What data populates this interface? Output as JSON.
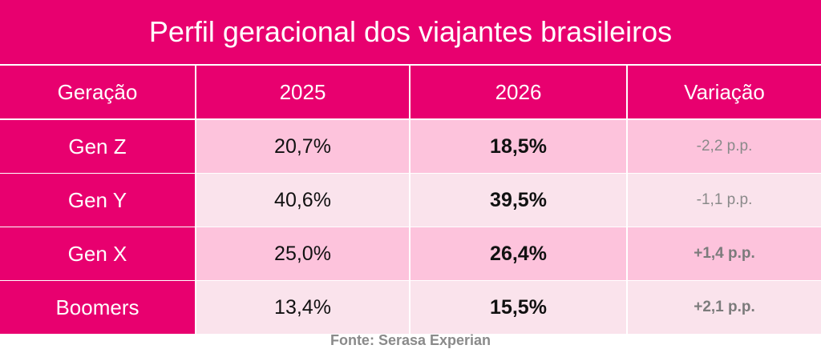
{
  "chart_data": {
    "type": "table",
    "title": "Perfil geracional dos viajantes brasileiros",
    "columns": [
      "Geração",
      "2025",
      "2026",
      "Variação"
    ],
    "rows": [
      {
        "geracao": "Gen Z",
        "y2025": "20,7%",
        "y2026": "18,5%",
        "variacao": "-2,2 p.p."
      },
      {
        "geracao": "Gen Y",
        "y2025": "40,6%",
        "y2026": "39,5%",
        "variacao": "-1,1 p.p."
      },
      {
        "geracao": "Gen X",
        "y2025": "25,0%",
        "y2026": "26,4%",
        "variacao": "+1,4 p.p."
      },
      {
        "geracao": "Boomers",
        "y2025": "13,4%",
        "y2026": "15,5%",
        "variacao": "+2,1 p.p."
      }
    ],
    "source": "Fonte: Serasa Experian"
  },
  "colors": {
    "header": "#E8006F",
    "row_odd": "#FDC3DC",
    "row_even": "#FAE3EC"
  }
}
